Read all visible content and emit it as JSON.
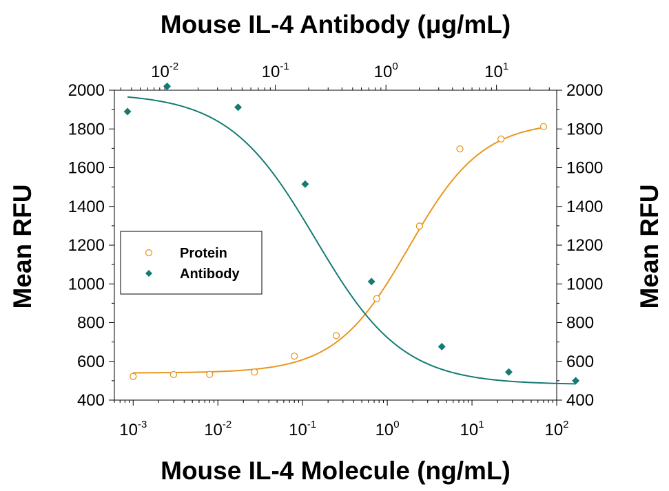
{
  "chart_data": {
    "type": "scatter",
    "x_scale": "log",
    "xlabel": "Mouse IL-4 Molecule (ng/mL)",
    "x2label": "Mouse IL-4 Antibody (μg/mL)",
    "ylabel": "Mean RFU",
    "y2label": "Mean RFU",
    "xlim": [
      0.0006,
      100
    ],
    "ylim": [
      400,
      2000
    ],
    "x_ticks": [
      {
        "base": "10",
        "exp": "-3",
        "value": 0.001
      },
      {
        "base": "10",
        "exp": "-2",
        "value": 0.01
      },
      {
        "base": "10",
        "exp": "-1",
        "value": 0.1
      },
      {
        "base": "10",
        "exp": "0",
        "value": 1
      },
      {
        "base": "10",
        "exp": "1",
        "value": 10
      },
      {
        "base": "10",
        "exp": "2",
        "value": 100
      }
    ],
    "x2lim": [
      0.0035,
      35
    ],
    "x2_ticks": [
      {
        "base": "10",
        "exp": "-2",
        "value": 0.01
      },
      {
        "base": "10",
        "exp": "-1",
        "value": 0.1
      },
      {
        "base": "10",
        "exp": "0",
        "value": 1
      },
      {
        "base": "10",
        "exp": "1",
        "value": 10
      }
    ],
    "y_ticks": [
      400,
      600,
      800,
      1000,
      1200,
      1400,
      1600,
      1800,
      2000
    ],
    "legend": {
      "position": "left-middle"
    },
    "series": [
      {
        "name": "Protein",
        "color": "#E8961E",
        "marker": "open-circle",
        "x": [
          0.001,
          0.003,
          0.008,
          0.027,
          0.08,
          0.25,
          0.75,
          2.4,
          7.2,
          22,
          70
        ],
        "y": [
          522,
          532,
          533,
          545,
          627,
          733,
          924,
          1298,
          1697,
          1748,
          1812
        ],
        "fit": {
          "bottom": 540,
          "top": 1840,
          "ec50": 1.8,
          "hill": 1.0
        }
      },
      {
        "name": "Antibody",
        "color": "#137B73",
        "marker": "filled-diamond",
        "x": [
          0.0046,
          0.0105,
          0.046,
          0.186,
          0.74,
          3.2,
          12.9,
          52
        ],
        "x_ref_scale": "top",
        "y": [
          1890,
          2020,
          1912,
          1515,
          1012,
          676,
          545,
          500
        ],
        "fit": {
          "bottom": 480,
          "top": 1985,
          "ec50": 0.23,
          "hill": 1.1
        }
      }
    ]
  }
}
